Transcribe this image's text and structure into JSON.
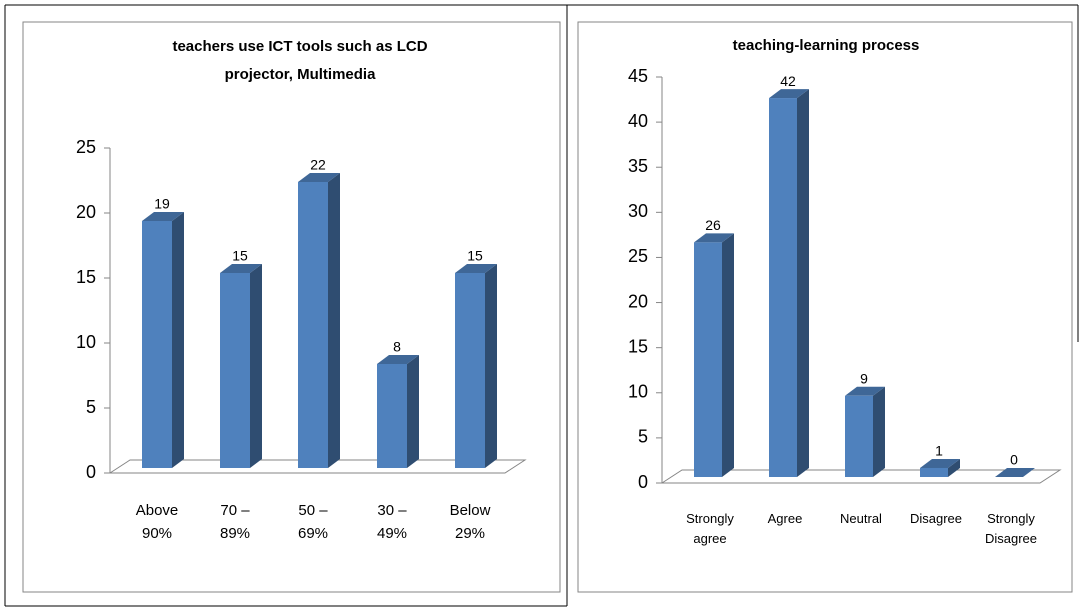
{
  "chart_data": [
    {
      "type": "bar3d",
      "title": "teachers use ICT tools such as LCD projector, Multimedia",
      "categories": [
        "Above 90%",
        "70 – 89%",
        "50 – 69%",
        "30 – 49%",
        "Below 29%"
      ],
      "values": [
        19,
        15,
        22,
        8,
        15
      ],
      "color": "#4f81bd",
      "ylim": [
        0,
        25
      ],
      "yticks": [
        0,
        5,
        10,
        15,
        20,
        25
      ],
      "grid": false
    },
    {
      "type": "bar3d",
      "title": "teaching-learning process",
      "categories": [
        "Strongly agree",
        "Agree",
        "Neutral",
        "Disagree",
        "Strongly Disagree"
      ],
      "values": [
        26,
        42,
        9,
        1,
        0
      ],
      "color": "#4f81bd",
      "ylim": [
        0,
        45
      ],
      "yticks": [
        0,
        5,
        10,
        15,
        20,
        25,
        30,
        35,
        40,
        45
      ],
      "grid": false
    }
  ]
}
